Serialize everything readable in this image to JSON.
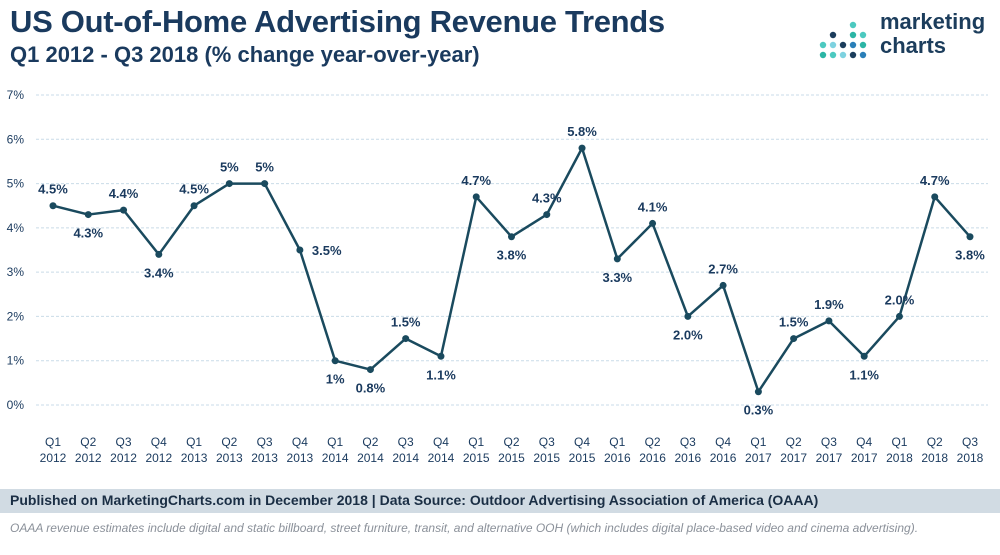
{
  "header": {
    "title": "US Out-of-Home Advertising Revenue Trends",
    "subtitle": "Q1 2012 - Q3 2018 (% change year-over-year)"
  },
  "logo": {
    "line1": "marketing",
    "line2": "charts",
    "dot_colors": [
      "#2bb5a5",
      "#4cc9c0",
      "#7ed2e0",
      "#1c3d5c",
      "#2a7fb8"
    ]
  },
  "footer": {
    "published": "Published on MarketingCharts.com in December 2018 | Data Source: Outdoor Advertising Association of America (OAAA)",
    "note": "OAAA revenue estimates include digital and static billboard, street furniture, transit, and alternative OOH (which includes digital place-based video and cinema advertising)."
  },
  "colors": {
    "line": "#1a4a5e",
    "text": "#1a3a5e",
    "grid": "#c9dbe8",
    "footer_bg": "#d1dbe3"
  },
  "chart_data": {
    "type": "line",
    "title": "US Out-of-Home Advertising Revenue Trends",
    "subtitle": "Q1 2012 - Q3 2018 (% change year-over-year)",
    "xlabel": "",
    "ylabel": "",
    "ylim": [
      0,
      7
    ],
    "yticks": [
      "0%",
      "1%",
      "2%",
      "3%",
      "4%",
      "5%",
      "6%",
      "7%"
    ],
    "grid": true,
    "categories": [
      {
        "q": "Q1",
        "y": "2012"
      },
      {
        "q": "Q2",
        "y": "2012"
      },
      {
        "q": "Q3",
        "y": "2012"
      },
      {
        "q": "Q4",
        "y": "2012"
      },
      {
        "q": "Q1",
        "y": "2013"
      },
      {
        "q": "Q2",
        "y": "2013"
      },
      {
        "q": "Q3",
        "y": "2013"
      },
      {
        "q": "Q4",
        "y": "2013"
      },
      {
        "q": "Q1",
        "y": "2014"
      },
      {
        "q": "Q2",
        "y": "2014"
      },
      {
        "q": "Q3",
        "y": "2014"
      },
      {
        "q": "Q4",
        "y": "2014"
      },
      {
        "q": "Q1",
        "y": "2015"
      },
      {
        "q": "Q2",
        "y": "2015"
      },
      {
        "q": "Q3",
        "y": "2015"
      },
      {
        "q": "Q4",
        "y": "2015"
      },
      {
        "q": "Q1",
        "y": "2016"
      },
      {
        "q": "Q2",
        "y": "2016"
      },
      {
        "q": "Q3",
        "y": "2016"
      },
      {
        "q": "Q4",
        "y": "2016"
      },
      {
        "q": "Q1",
        "y": "2017"
      },
      {
        "q": "Q2",
        "y": "2017"
      },
      {
        "q": "Q3",
        "y": "2017"
      },
      {
        "q": "Q4",
        "y": "2017"
      },
      {
        "q": "Q1",
        "y": "2018"
      },
      {
        "q": "Q2",
        "y": "2018"
      },
      {
        "q": "Q3",
        "y": "2018"
      }
    ],
    "series": [
      {
        "name": "% change year-over-year",
        "values": [
          4.5,
          4.3,
          4.4,
          3.4,
          4.5,
          5.0,
          5.0,
          3.5,
          1.0,
          0.8,
          1.5,
          1.1,
          4.7,
          3.8,
          4.3,
          5.8,
          3.3,
          4.1,
          2.0,
          2.7,
          0.3,
          1.5,
          1.9,
          1.1,
          2.0,
          4.7,
          3.8
        ],
        "labels": [
          "4.5%",
          "4.3%",
          "4.4%",
          "3.4%",
          "4.5%",
          "5%",
          "5%",
          "3.5%",
          "1%",
          "0.8%",
          "1.5%",
          "1.1%",
          "4.7%",
          "3.8%",
          "4.3%",
          "5.8%",
          "3.3%",
          "4.1%",
          "2.0%",
          "2.7%",
          "0.3%",
          "1.5%",
          "1.9%",
          "1.1%",
          "2.0%",
          "4.7%",
          "3.8%"
        ],
        "label_positions": [
          "above",
          "below",
          "above",
          "below",
          "above",
          "above",
          "above",
          "right",
          "below",
          "below",
          "above",
          "below",
          "above",
          "below",
          "above",
          "above",
          "below",
          "above",
          "below",
          "above",
          "below",
          "above",
          "above",
          "below",
          "above",
          "above",
          "below"
        ]
      }
    ]
  }
}
